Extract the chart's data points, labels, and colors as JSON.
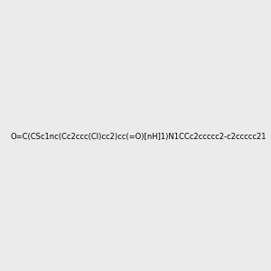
{
  "smiles": "O=C(CSc1nc(Cc2ccc(Cl)cc2)cc(=O)[nH]1)N1CCc2ccccc2-c2ccccc21",
  "image_size": 300,
  "background_color": "#ebebeb",
  "title": ""
}
